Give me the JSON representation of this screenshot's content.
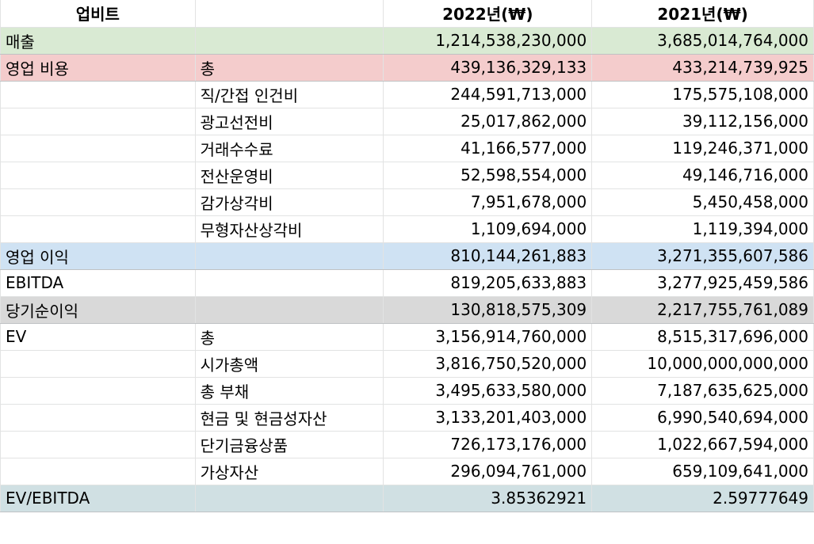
{
  "header": {
    "company": "업비트",
    "year_2022": "2022년(₩)",
    "year_2021": "2021년(₩)"
  },
  "colors": {
    "revenue_row": "#d9ead3",
    "opex_row": "#f4cccc",
    "op_income_row": "#cfe2f3",
    "net_income_row": "#d9d9d9",
    "ev_ebitda_row": "#d0e0e3",
    "grid_line": "#e2e3e3"
  },
  "rows": [
    {
      "category": "매출",
      "sub": "",
      "v2022": "1,214,538,230,000",
      "v2021": "3,685,014,764,000",
      "fill": "#d9ead3"
    },
    {
      "category": "영업 비용",
      "sub": "총",
      "v2022": "439,136,329,133",
      "v2021": "433,214,739,925",
      "fill": "#f4cccc"
    },
    {
      "category": "",
      "sub": "직/간접 인건비",
      "v2022": "244,591,713,000",
      "v2021": "175,575,108,000",
      "fill": ""
    },
    {
      "category": "",
      "sub": "광고선전비",
      "v2022": "25,017,862,000",
      "v2021": "39,112,156,000",
      "fill": ""
    },
    {
      "category": "",
      "sub": "거래수수료",
      "v2022": "41,166,577,000",
      "v2021": "119,246,371,000",
      "fill": ""
    },
    {
      "category": "",
      "sub": "전산운영비",
      "v2022": "52,598,554,000",
      "v2021": "49,146,716,000",
      "fill": ""
    },
    {
      "category": "",
      "sub": "감가상각비",
      "v2022": "7,951,678,000",
      "v2021": "5,450,458,000",
      "fill": ""
    },
    {
      "category": "",
      "sub": "무형자산상각비",
      "v2022": "1,109,694,000",
      "v2021": "1,119,394,000",
      "fill": ""
    },
    {
      "category": "영업 이익",
      "sub": "",
      "v2022": "810,144,261,883",
      "v2021": "3,271,355,607,586",
      "fill": "#cfe2f3"
    },
    {
      "category": "EBITDA",
      "sub": "",
      "v2022": "819,205,633,883",
      "v2021": "3,277,925,459,586",
      "fill": ""
    },
    {
      "category": "당기순이익",
      "sub": "",
      "v2022": "130,818,575,309",
      "v2021": "2,217,755,761,089",
      "fill": "#d9d9d9"
    },
    {
      "category": "EV",
      "sub": "총",
      "v2022": "3,156,914,760,000",
      "v2021": "8,515,317,696,000",
      "fill": ""
    },
    {
      "category": "",
      "sub": "시가총액",
      "v2022": "3,816,750,520,000",
      "v2021": "10,000,000,000,000",
      "fill": ""
    },
    {
      "category": "",
      "sub": "총 부채",
      "v2022": "3,495,633,580,000",
      "v2021": "7,187,635,625,000",
      "fill": ""
    },
    {
      "category": "",
      "sub": "현금 및 현금성자산",
      "v2022": "3,133,201,403,000",
      "v2021": "6,990,540,694,000",
      "fill": ""
    },
    {
      "category": "",
      "sub": "단기금융상품",
      "v2022": "726,173,176,000",
      "v2021": "1,022,667,594,000",
      "fill": ""
    },
    {
      "category": "",
      "sub": "가상자산",
      "v2022": "296,094,761,000",
      "v2021": "659,109,641,000",
      "fill": ""
    },
    {
      "category": "EV/EBITDA",
      "sub": "",
      "v2022": "3.85362921",
      "v2021": "2.59777649",
      "fill": "#d0e0e3"
    }
  ]
}
